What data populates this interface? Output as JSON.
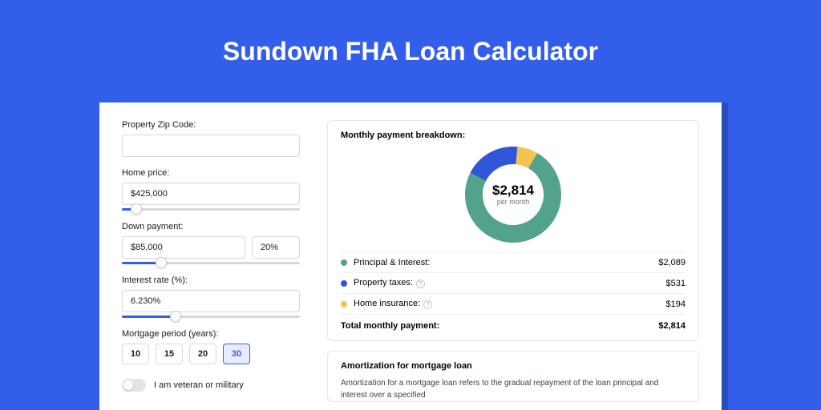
{
  "page_title": "Sundown FHA Loan Calculator",
  "colors": {
    "page_bg": "#335eea",
    "shadow": "#2a4cbb",
    "card_bg": "#ffffff",
    "accent": "#335eea",
    "border": "#d5d8de",
    "text": "#1a1a1a"
  },
  "form": {
    "zip": {
      "label": "Property Zip Code:",
      "value": ""
    },
    "home_price": {
      "label": "Home price:",
      "value": "$425,000",
      "slider_pct": 8
    },
    "down_payment": {
      "label": "Down payment:",
      "value": "$85,000",
      "pct_value": "20%",
      "slider_pct": 22
    },
    "interest_rate": {
      "label": "Interest rate (%):",
      "value": "6.230%",
      "slider_pct": 30
    },
    "period": {
      "label": "Mortgage period (years):",
      "options": [
        "10",
        "15",
        "20",
        "30"
      ],
      "selected_index": 3
    },
    "veteran": {
      "label": "I am veteran or military",
      "checked": false
    }
  },
  "breakdown": {
    "title": "Monthly payment breakdown:",
    "center_value": "$2,814",
    "center_label": "per month",
    "donut": {
      "size": 120,
      "thickness": 22,
      "slices": [
        {
          "color": "#53a28c",
          "pct": 74.2
        },
        {
          "color": "#3055d8",
          "pct": 18.9
        },
        {
          "color": "#f1c453",
          "pct": 6.9
        }
      ]
    },
    "items": [
      {
        "color": "#53a28c",
        "label": "Principal & Interest:",
        "value": "$2,089",
        "info": false
      },
      {
        "color": "#3055d8",
        "label": "Property taxes:",
        "value": "$531",
        "info": true
      },
      {
        "color": "#f1c453",
        "label": "Home insurance:",
        "value": "$194",
        "info": true
      }
    ],
    "total_label": "Total monthly payment:",
    "total_value": "$2,814"
  },
  "amortization": {
    "title": "Amortization for mortgage loan",
    "text": "Amortization for a mortgage loan refers to the gradual repayment of the loan principal and interest over a specified"
  }
}
